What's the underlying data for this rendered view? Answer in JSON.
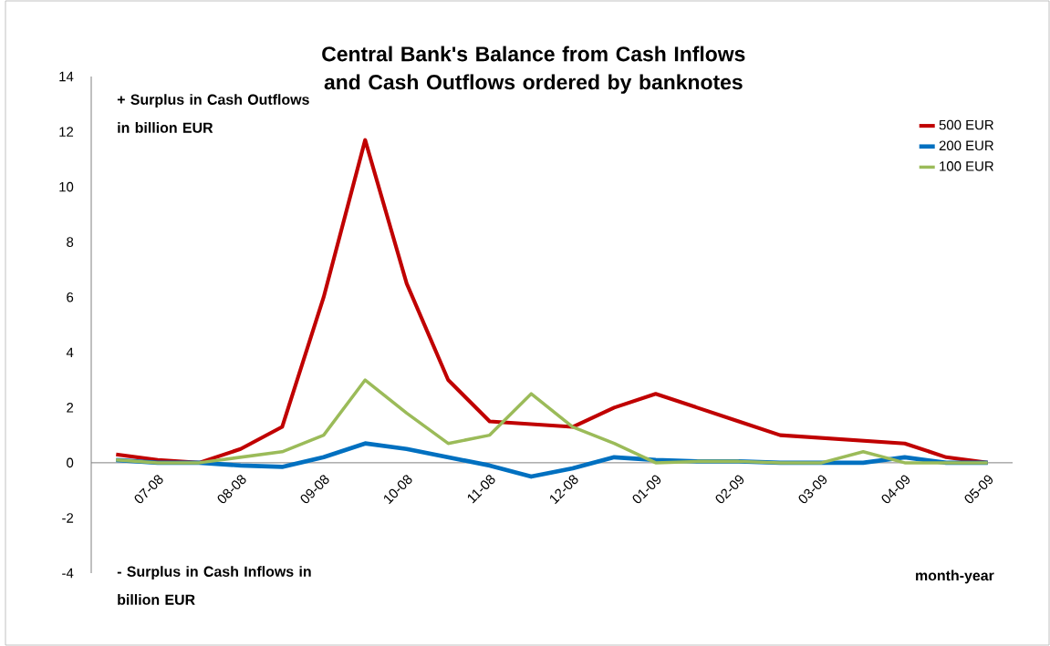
{
  "chart_data": {
    "type": "line",
    "title": "Central Bank's Balance from Cash Inflows and Cash Outflows ordered by banknotes",
    "annotations": [
      "+ Surplus in Cash Outflows in billion EUR",
      "- Surplus in Cash Inflows in billion EUR",
      "month-year"
    ],
    "categories": [
      null,
      "07-08",
      null,
      "08-08",
      null,
      "09-08",
      null,
      "10-08",
      null,
      "11-08",
      null,
      "12-08",
      null,
      "01-09",
      null,
      "02-09",
      null,
      "03-09",
      null,
      "04-09",
      null,
      "05-09"
    ],
    "series": [
      {
        "name": "500 EUR",
        "color": "#c00000",
        "values": [
          0.3,
          0.1,
          0.0,
          0.5,
          1.3,
          6.0,
          11.7,
          6.5,
          3.0,
          1.5,
          1.4,
          1.3,
          2.0,
          2.5,
          2.0,
          1.5,
          1.0,
          0.9,
          0.8,
          0.7,
          0.2,
          0.0
        ]
      },
      {
        "name": "200 EUR",
        "color": "#0070c0",
        "values": [
          0.1,
          0.0,
          0.0,
          -0.1,
          -0.15,
          0.2,
          0.7,
          0.5,
          0.2,
          -0.1,
          -0.5,
          -0.2,
          0.2,
          0.1,
          0.05,
          0.05,
          0.0,
          0.0,
          0.0,
          0.2,
          0.0,
          0.0
        ]
      },
      {
        "name": "100 EUR",
        "color": "#9bbb59",
        "values": [
          0.1,
          0.0,
          0.0,
          0.2,
          0.4,
          1.0,
          3.0,
          1.8,
          0.7,
          1.0,
          2.5,
          1.3,
          0.7,
          0.0,
          0.05,
          0.05,
          0.0,
          0.0,
          0.4,
          0.0,
          0.0,
          0.0
        ]
      }
    ],
    "ylim": [
      -4,
      14
    ],
    "yticks": [
      -4,
      -2,
      0,
      2,
      4,
      6,
      8,
      10,
      12,
      14
    ],
    "grid": false,
    "legend": "top right",
    "marker": "none",
    "line_style": "solid"
  }
}
